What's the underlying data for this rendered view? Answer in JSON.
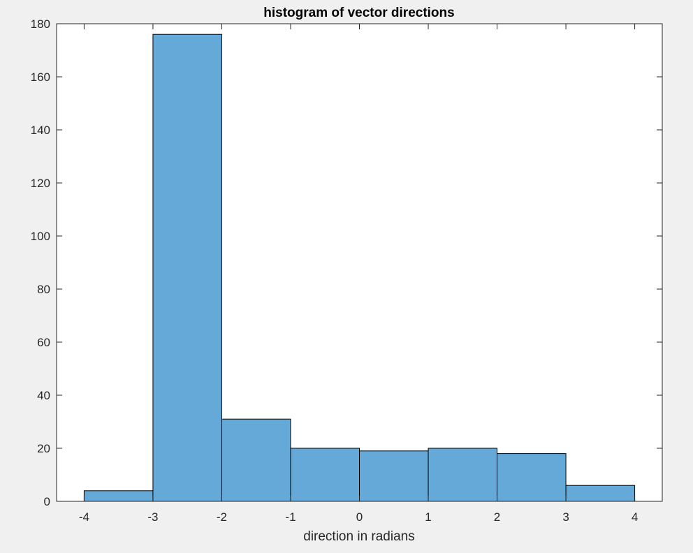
{
  "chart_data": {
    "type": "bar",
    "subtype": "histogram",
    "title": "histogram of vector directions",
    "xlabel": "direction in radians",
    "ylabel": "",
    "bin_edges": [
      -4,
      -3,
      -2,
      -1,
      0,
      1,
      2,
      3,
      4
    ],
    "counts": [
      4,
      176,
      31,
      20,
      19,
      20,
      18,
      6
    ],
    "xlim": [
      -4.4,
      4.4
    ],
    "ylim": [
      0,
      180
    ],
    "xticks": [
      "-4",
      "-3",
      "-2",
      "-1",
      "0",
      "1",
      "2",
      "3",
      "4"
    ],
    "yticks": [
      "0",
      "20",
      "40",
      "60",
      "80",
      "100",
      "120",
      "140",
      "160",
      "180"
    ],
    "grid": false,
    "legend": "none",
    "colors": {
      "bar_fill": "#64a9d8",
      "bar_edge": "#000000",
      "axes_background": "#ffffff",
      "figure_background": "#f0f0f0",
      "axis_line": "#262626"
    }
  }
}
